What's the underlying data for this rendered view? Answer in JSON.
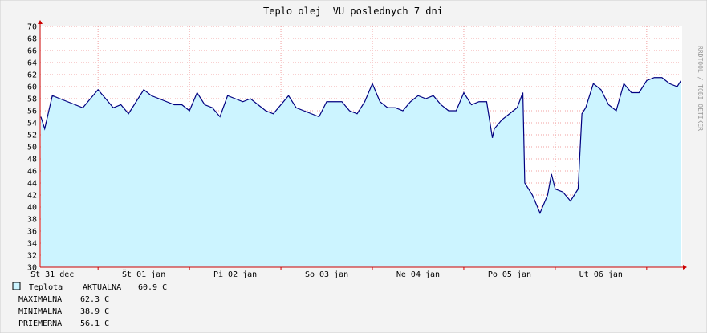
{
  "chart_data": {
    "type": "line",
    "title": "Teplo olej  VU poslednych 7 dni",
    "side_note": "RRDTOOL / TOBI OETIKER",
    "x": [
      9,
      10,
      12,
      14,
      16,
      18,
      20,
      22,
      24,
      26,
      28,
      30,
      32,
      34,
      36,
      38,
      40,
      42,
      44,
      46,
      48,
      50,
      52,
      54,
      56,
      58,
      60,
      62,
      64,
      66,
      68,
      70,
      72,
      74,
      76,
      78,
      80,
      82,
      84,
      86,
      88,
      90,
      92,
      94,
      96,
      98,
      100,
      102,
      104,
      106,
      108,
      110,
      112,
      114,
      116,
      118,
      120,
      122,
      124,
      126,
      127.5,
      128,
      130,
      132,
      134,
      135.5,
      136,
      138,
      140,
      142,
      143,
      144,
      146,
      148,
      150,
      151,
      152,
      154,
      156,
      158,
      160,
      162,
      164,
      166,
      168,
      170,
      172,
      174,
      176,
      177
    ],
    "series": [
      {
        "name": "Teplota",
        "color": "#000080",
        "fill": "#ccf4ff",
        "values": [
          55,
          53,
          58.5,
          58,
          57.5,
          57,
          56.5,
          58,
          59.5,
          58,
          56.5,
          57,
          55.5,
          57.5,
          59.5,
          58.5,
          58,
          57.5,
          57,
          57,
          56,
          59,
          57,
          56.5,
          55,
          58.5,
          58,
          57.5,
          58,
          57,
          56,
          55.5,
          57,
          58.5,
          56.5,
          56,
          55.5,
          55,
          57.5,
          57.5,
          57.5,
          56,
          55.5,
          57.5,
          60.5,
          57.5,
          56.5,
          56.5,
          56,
          57.5,
          58.5,
          58,
          58.5,
          57,
          56,
          56,
          59,
          57,
          57.5,
          57.5,
          51.5,
          53,
          54.5,
          55.5,
          56.5,
          59,
          44,
          42,
          39,
          42,
          45.5,
          43,
          42.5,
          41,
          43,
          55.5,
          56.5,
          60.5,
          59.5,
          57,
          56,
          60.5,
          59,
          59,
          61,
          61.5,
          61.5,
          60.5,
          60,
          61
        ]
      }
    ],
    "xlim": [
      8.8,
      177.3
    ],
    "xticks": [
      {
        "value": 12,
        "label": "St 31 dec"
      },
      {
        "value": 36,
        "label": "Št 01 jan"
      },
      {
        "value": 60,
        "label": "Pi 02 jan"
      },
      {
        "value": 84,
        "label": "So 03 jan"
      },
      {
        "value": 108,
        "label": "Ne 04 jan"
      },
      {
        "value": 132,
        "label": "Po 05 jan"
      },
      {
        "value": 156,
        "label": "Ut 06 jan"
      }
    ],
    "xgrid": [
      24,
      48,
      72,
      96,
      120,
      144,
      168
    ],
    "ylim": [
      30,
      70
    ],
    "yticks": [
      30,
      32,
      34,
      36,
      38,
      40,
      42,
      44,
      46,
      48,
      50,
      52,
      54,
      56,
      58,
      60,
      62,
      64,
      66,
      68,
      70
    ],
    "grid": true,
    "legend": {
      "current_label": "AKTUALNA",
      "current": "60.9 C"
    },
    "stats": [
      {
        "label": "MAXIMALNA",
        "value": "62.3 C"
      },
      {
        "label": "MINIMALNA",
        "value": "38.9 C"
      },
      {
        "label": "PRIEMERNA",
        "value": "56.1 C"
      }
    ]
  }
}
